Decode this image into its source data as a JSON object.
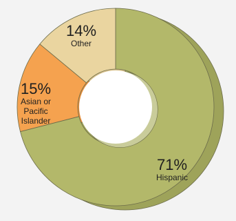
{
  "chart_data": {
    "type": "pie",
    "style": "3d-donut",
    "slices": [
      {
        "label": "Hispanic",
        "value": 71,
        "value_label": "71%",
        "color": "#b3b86a",
        "side_color": "#9ea35a"
      },
      {
        "label": "Asian or Pacific Islander",
        "label_lines": [
          "Asian or",
          "Pacific",
          "Islander"
        ],
        "value": 15,
        "value_label": "15%",
        "color": "#f5a24f",
        "side_color": "#e48f3d"
      },
      {
        "label": "Other",
        "value": 14,
        "value_label": "14%",
        "color": "#ead5a0",
        "side_color": "#d8c18c"
      }
    ],
    "start": "top, clockwise",
    "legend": "none (labels on slices)"
  },
  "colors": {
    "background": "#f3f3f3",
    "hole": "#ffffff",
    "outline": "#6b6b4a",
    "depth_tint": "#c9cc9a"
  }
}
